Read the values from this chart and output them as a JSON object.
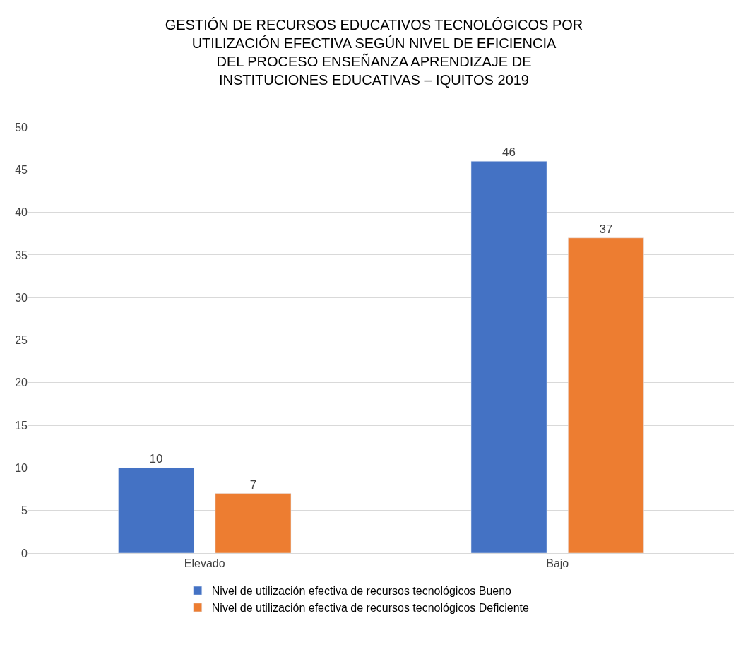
{
  "chart_data": {
    "type": "bar",
    "title": "GESTIÓN DE RECURSOS EDUCATIVOS TECNOLÓGICOS POR\nUTILIZACIÓN EFECTIVA SEGÚN NIVEL DE EFICIENCIA\nDEL PROCESO ENSEÑANZA APRENDIZAJE DE\nINSTITUCIONES EDUCATIVAS – IQUITOS 2019",
    "categories": [
      "Elevado",
      "Bajo"
    ],
    "series": [
      {
        "name": "Nivel de utilización efectiva de recursos tecnológicos Bueno",
        "color": "#4472c4",
        "values": [
          10,
          46
        ]
      },
      {
        "name": "Nivel de utilización efectiva de recursos tecnológicos Deficiente",
        "color": "#ed7d31",
        "values": [
          7,
          37
        ]
      }
    ],
    "ylim": [
      0,
      50
    ],
    "yticks": [
      0,
      5,
      10,
      15,
      20,
      25,
      30,
      35,
      40,
      45,
      50
    ],
    "grid": "y",
    "legend": "bottom",
    "data_labels": true
  }
}
